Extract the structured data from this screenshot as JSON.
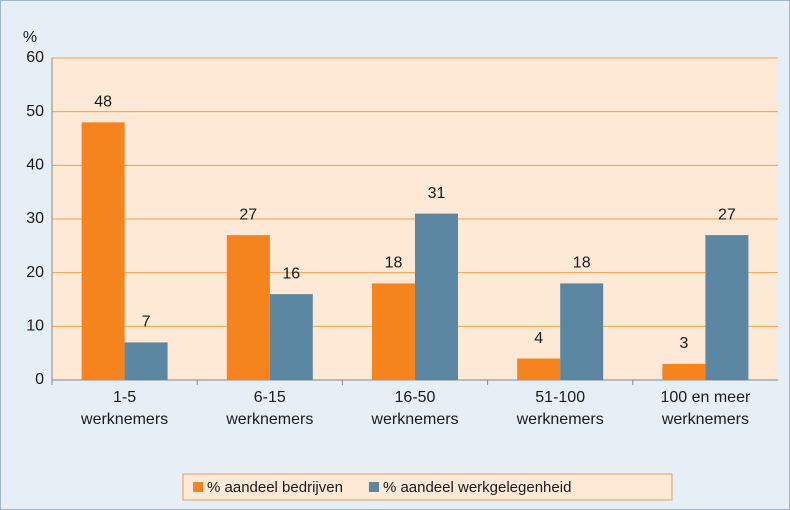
{
  "chart_data": {
    "type": "bar",
    "y_label": "%",
    "categories": [
      [
        "1-5",
        "werknemers"
      ],
      [
        "6-15",
        "werknemers"
      ],
      [
        "16-50",
        "werknemers"
      ],
      [
        "51-100",
        "werknemers"
      ],
      [
        "100 en meer",
        "werknemers"
      ]
    ],
    "series": [
      {
        "name": "% aandeel bedrijven",
        "color": "#f5841f",
        "values": [
          48,
          27,
          18,
          4,
          3
        ]
      },
      {
        "name": "% aandeel werkgelegenheid",
        "color": "#5b87a3",
        "values": [
          7,
          16,
          31,
          18,
          27
        ]
      }
    ],
    "ylim": [
      0,
      60
    ],
    "yticks": [
      0,
      10,
      20,
      30,
      40,
      50,
      60
    ],
    "grid": true,
    "legend": "bottom"
  }
}
